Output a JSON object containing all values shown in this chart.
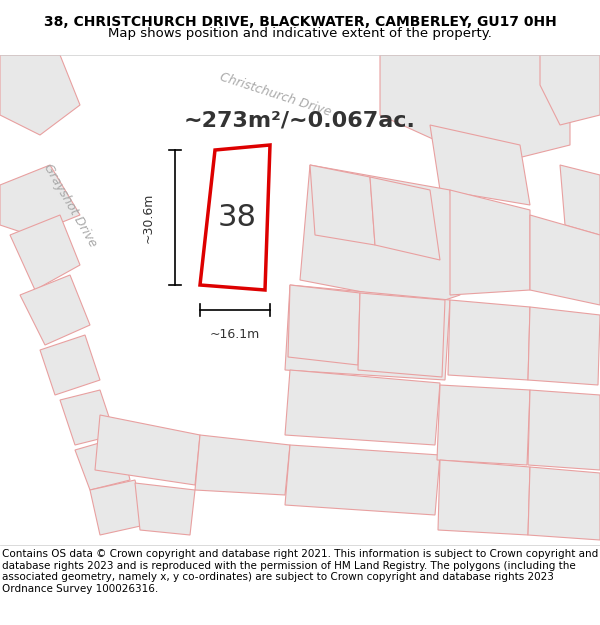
{
  "title_line1": "38, CHRISTCHURCH DRIVE, BLACKWATER, CAMBERLEY, GU17 0HH",
  "title_line2": "Map shows position and indicative extent of the property.",
  "area_text": "~273m²/~0.067ac.",
  "dim_vertical": "~30.6m",
  "dim_horizontal": "~16.1m",
  "plot_number": "38",
  "background_color": "#f5f5f5",
  "map_bg_color": "#f0f0f0",
  "building_fill": "#e8e8e8",
  "building_edge_color": "#e8a0a0",
  "road_color": "#ffffff",
  "highlight_edge_color": "#dd0000",
  "highlight_fill": "#ffffff",
  "street_label_color": "#aaaaaa",
  "copyright_text": "Contains OS data © Crown copyright and database right 2021. This information is subject to Crown copyright and database rights 2023 and is reproduced with the permission of HM Land Registry. The polygons (including the associated geometry, namely x, y co-ordinates) are subject to Crown copyright and database rights 2023 Ordnance Survey 100026316.",
  "title_fontsize": 10,
  "copyright_fontsize": 7.5
}
